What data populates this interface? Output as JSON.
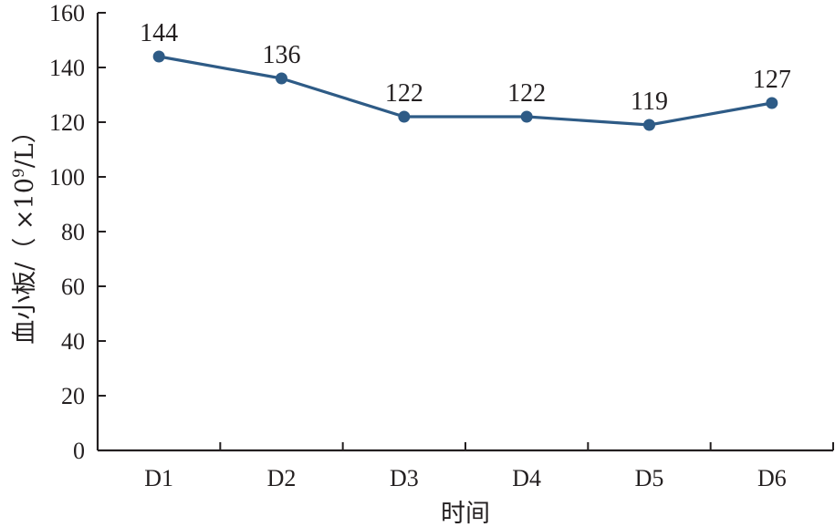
{
  "chart_data": {
    "type": "line",
    "categories": [
      "D1",
      "D2",
      "D3",
      "D4",
      "D5",
      "D6"
    ],
    "series": [
      {
        "values": [
          144,
          136,
          122,
          122,
          119,
          127
        ]
      }
    ],
    "data_labels": [
      "144",
      "136",
      "122",
      "122",
      "119",
      "127"
    ],
    "xlabel": "时间",
    "ylabel_main": "血小板/（ ×10",
    "ylabel_sup": "9",
    "ylabel_tail": "/L）",
    "ylim": [
      0,
      160
    ],
    "yticks": [
      0,
      20,
      40,
      60,
      80,
      100,
      120,
      140,
      160
    ],
    "grid": false,
    "colors": {
      "series": "#2e5b86",
      "axis": "#231f20"
    }
  }
}
